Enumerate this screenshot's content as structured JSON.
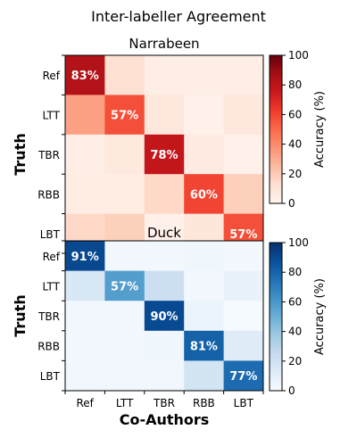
{
  "figure_title": "Inter-labeller Agreement",
  "chart_data": [
    {
      "type": "heatmap",
      "title": "Narrabeen",
      "ylabel": "Truth",
      "xlabel": "",
      "categories": [
        "Ref",
        "LTT",
        "TBR",
        "RBB",
        "LBT"
      ],
      "colormap": "Reds",
      "vmin": 0,
      "vmax": 100,
      "colorbar_label": "Accuracy (%)",
      "colorbar_ticks": [
        0,
        20,
        40,
        60,
        80,
        100
      ],
      "values": [
        [
          83,
          12,
          4,
          4,
          4
        ],
        [
          33,
          57,
          8,
          3,
          8
        ],
        [
          4,
          7,
          78,
          6,
          3
        ],
        [
          5,
          5,
          15,
          60,
          18
        ],
        [
          15,
          18,
          3,
          9,
          57
        ]
      ],
      "show_labels_on_diagonal": true,
      "label_suffix": "%"
    },
    {
      "type": "heatmap",
      "title": "Duck",
      "ylabel": "Truth",
      "xlabel": "Co-Authors",
      "categories": [
        "Ref",
        "LTT",
        "TBR",
        "RBB",
        "LBT"
      ],
      "colormap": "Blues",
      "vmin": 0,
      "vmax": 100,
      "colorbar_label": "Accuracy (%)",
      "colorbar_ticks": [
        0,
        20,
        40,
        60,
        80,
        100
      ],
      "values": [
        [
          91,
          2,
          2,
          4,
          2
        ],
        [
          15,
          57,
          22,
          2,
          7
        ],
        [
          3,
          3,
          90,
          6,
          1
        ],
        [
          2,
          2,
          4,
          81,
          12
        ],
        [
          3,
          3,
          3,
          18,
          77
        ]
      ],
      "show_labels_on_diagonal": true,
      "label_suffix": "%"
    }
  ]
}
